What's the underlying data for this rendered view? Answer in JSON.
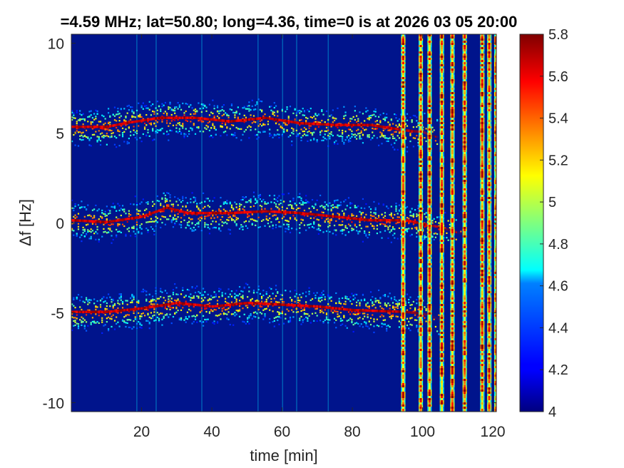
{
  "chart_data": {
    "type": "heatmap",
    "title": "=4.59 MHz;  lat=50.80; long=4.36, time=0 is at 2026 03 05 20:00",
    "xlabel": "time [min]",
    "ylabel": "Δf [Hz]",
    "xlim": [
      0,
      121
    ],
    "ylim": [
      -10.5,
      10.5
    ],
    "x_ticks": [
      20,
      40,
      60,
      80,
      100,
      120
    ],
    "x_tick_labels": [
      "20",
      "40",
      "60",
      "80",
      "100",
      "120"
    ],
    "y_ticks": [
      10,
      5,
      0,
      -5,
      -10
    ],
    "y_tick_labels": [
      "10",
      "5",
      "0",
      "-5",
      "-10"
    ],
    "colorbar": {
      "colormap": "jet",
      "clim": [
        4,
        5.8
      ],
      "ticks": [
        5.8,
        5.6,
        5.4,
        5.2,
        5,
        4.8,
        4.6,
        4.4,
        4.2,
        4
      ],
      "tick_labels": [
        "5.8",
        "5.6",
        "5.4",
        "5.2",
        "5",
        "4.8",
        "4.6",
        "4.4",
        "4.2",
        "4"
      ]
    },
    "background_level": 4.1,
    "traces": [
      {
        "points": [
          [
            0,
            5.3
          ],
          [
            10,
            5.3
          ],
          [
            15,
            5.5
          ],
          [
            25,
            5.8
          ],
          [
            35,
            5.8
          ],
          [
            45,
            5.6
          ],
          [
            55,
            5.8
          ],
          [
            65,
            5.5
          ],
          [
            75,
            5.4
          ],
          [
            85,
            5.4
          ],
          [
            95,
            5.1
          ],
          [
            100,
            5.0
          ],
          [
            106,
            4.6
          ]
        ],
        "peak": 5.8
      },
      {
        "points": [
          [
            0,
            0.1
          ],
          [
            10,
            0.0
          ],
          [
            20,
            0.3
          ],
          [
            27,
            0.8
          ],
          [
            33,
            0.5
          ],
          [
            45,
            0.5
          ],
          [
            55,
            0.6
          ],
          [
            65,
            0.5
          ],
          [
            75,
            0.3
          ],
          [
            85,
            0.1
          ],
          [
            95,
            0.1
          ],
          [
            105,
            -0.3
          ],
          [
            112,
            -0.7
          ]
        ],
        "peak": 5.8
      },
      {
        "points": [
          [
            0,
            -5.0
          ],
          [
            10,
            -5.0
          ],
          [
            20,
            -4.8
          ],
          [
            30,
            -4.5
          ],
          [
            40,
            -4.7
          ],
          [
            50,
            -4.5
          ],
          [
            60,
            -4.6
          ],
          [
            70,
            -4.7
          ],
          [
            80,
            -4.9
          ],
          [
            95,
            -5.0
          ],
          [
            100,
            -5.1
          ],
          [
            106,
            -5.5
          ]
        ],
        "peak": 5.8
      }
    ],
    "broadband_columns_min": [
      94.5,
      99.5,
      102,
      105.5,
      108.5,
      112,
      117,
      119,
      121
    ],
    "sparse_columns_min": [
      18.5,
      24,
      37,
      53,
      60,
      64,
      73
    ]
  }
}
